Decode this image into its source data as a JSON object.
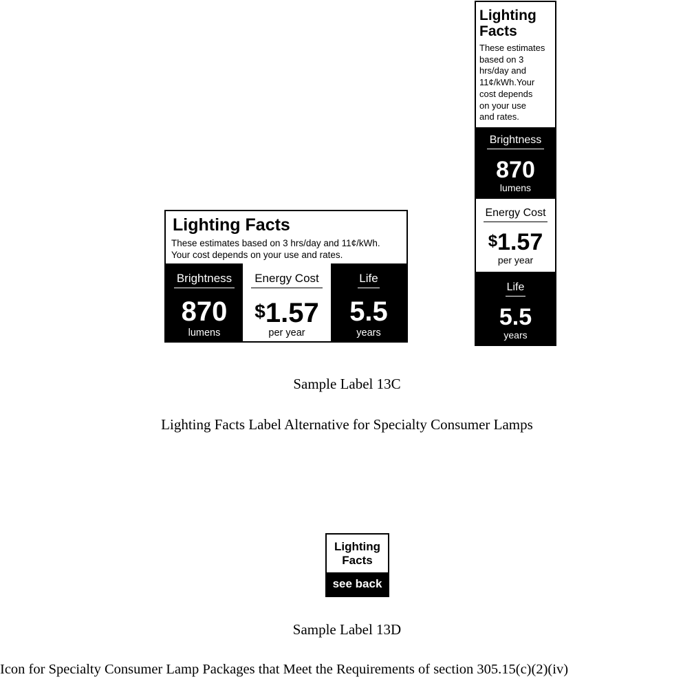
{
  "sample_13c": {
    "horizontal_label": {
      "title": "Lighting Facts",
      "subtitle_line1": "These estimates based on 3 hrs/day and 11¢/kWh.",
      "subtitle_line2": "Your cost depends on your use and rates.",
      "brightness": {
        "label": "Brightness",
        "value": "870",
        "unit": "lumens"
      },
      "energy_cost": {
        "label": "Energy Cost",
        "currency": "$",
        "value": "1.57",
        "unit": "per year"
      },
      "life": {
        "label": "Life",
        "value": "5.5",
        "unit": "years"
      }
    },
    "vertical_label": {
      "title_line1": "Lighting",
      "title_line2": "Facts",
      "subtitle_lines": [
        "These estimates",
        "based on 3",
        "hrs/day and",
        "11¢/kWh.Your",
        "cost depends",
        "on your use",
        "and rates."
      ],
      "brightness": {
        "label": "Brightness",
        "value": "870",
        "unit": "lumens"
      },
      "energy_cost": {
        "label": "Energy Cost",
        "currency": "$",
        "value": "1.57",
        "unit": "per year"
      },
      "life": {
        "label": "Life",
        "value": "5.5",
        "unit": "years"
      }
    },
    "caption": "Sample Label 13C",
    "description": "Lighting Facts Label Alternative for Specialty Consumer Lamps"
  },
  "sample_13d": {
    "icon": {
      "line1": "Lighting",
      "line2": "Facts",
      "bottom_text": "see back"
    },
    "caption": "Sample Label 13D",
    "description": "Icon for Specialty Consumer Lamp Packages that Meet the Requirements of section  305.15(c)(2)(iv)"
  },
  "colors": {
    "ink": "#000000",
    "paper": "#ffffff"
  }
}
